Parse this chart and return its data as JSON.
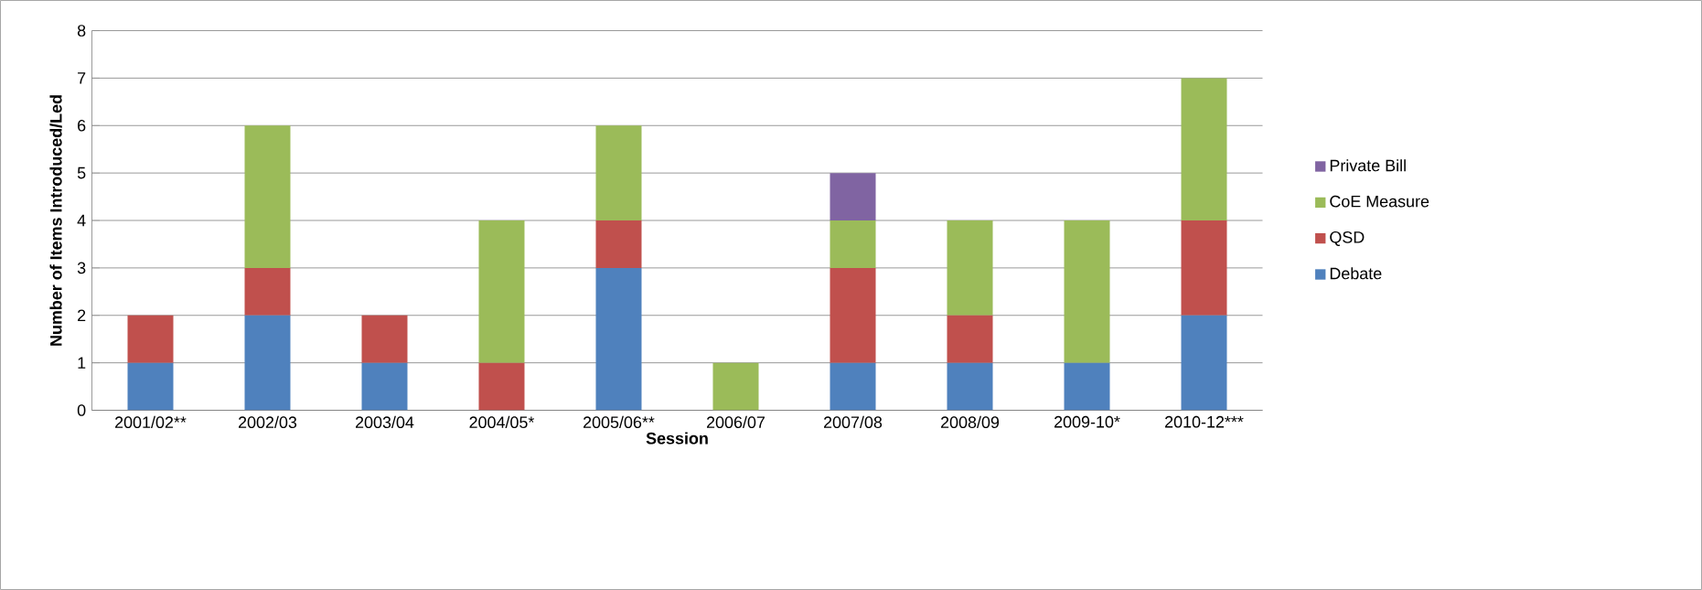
{
  "chart_data": {
    "type": "bar",
    "stacked": true,
    "xlabel": "Session",
    "ylabel": "Number of Items Introduced/Led",
    "categories": [
      "2001/02**",
      "2002/03",
      "2003/04",
      "2004/05*",
      "2005/06**",
      "2006/07",
      "2007/08",
      "2008/09",
      "2009-10*",
      "2010-12***"
    ],
    "series": [
      {
        "name": "Debate",
        "color": "#4f81bd",
        "values": [
          1,
          2,
          1,
          0,
          3,
          0,
          1,
          1,
          1,
          2
        ]
      },
      {
        "name": "QSD",
        "color": "#c0504d",
        "values": [
          1,
          1,
          1,
          1,
          1,
          0,
          2,
          1,
          0,
          2
        ]
      },
      {
        "name": "CoE Measure",
        "color": "#9bbb59",
        "values": [
          0,
          3,
          0,
          3,
          2,
          1,
          1,
          2,
          3,
          3
        ]
      },
      {
        "name": "Private Bill",
        "color": "#8064a2",
        "values": [
          0,
          0,
          0,
          0,
          0,
          0,
          1,
          0,
          0,
          0
        ]
      }
    ],
    "ylim": [
      0,
      8
    ],
    "yticks": [
      0,
      1,
      2,
      3,
      4,
      5,
      6,
      7,
      8
    ],
    "grid": "y",
    "legend": "right"
  }
}
